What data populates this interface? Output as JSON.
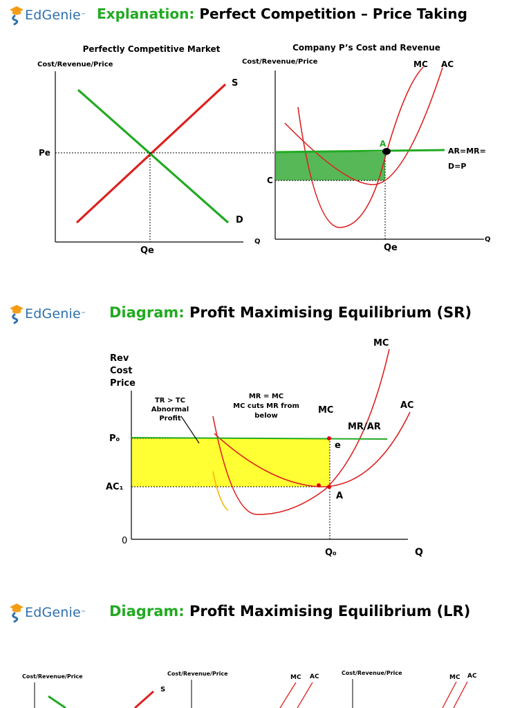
{
  "brand": {
    "name": "EdGenie",
    "tm": "™"
  },
  "colors": {
    "green": "#22aa22",
    "red": "#dd2020",
    "yellow": "#ffff33",
    "brand_blue": "#2d6fae",
    "brand_orange": "#f39c12"
  },
  "section1": {
    "title_keyword": "Explanation:",
    "title_rest": "Perfect Competition – Price Taking",
    "left": {
      "heading": "Perfectly Competitive Market",
      "ylabel": "Cost/Revenue/Price",
      "xlabel": "Q",
      "price_label": "Pe",
      "qty_label": "Qe",
      "supply_label": "S",
      "demand_label": "D"
    },
    "right": {
      "heading": "Company P’s Cost and Revenue",
      "ylabel": "Cost/Revenue/Price",
      "xlabel": "Q",
      "mc_label": "MC",
      "ac_label": "AC",
      "point_label": "A",
      "ar_line1": "AR=MR=",
      "ar_line2": "D=P",
      "cost_label": "C",
      "qty_label": "Qe"
    }
  },
  "section2": {
    "title_keyword": "Diagram:",
    "title_rest": "Profit Maximising Equilibrium (SR)",
    "ylabel": [
      "Rev",
      "Cost",
      "Price"
    ],
    "price_label": "P₀",
    "ac_label": "AC₁",
    "origin_label": "0",
    "qty_label": "Q₀",
    "xlabel": "Q",
    "mc_top_label": "MC",
    "mc_label": "MC",
    "ac_curve_label": "AC",
    "mrar_label": "MR/AR",
    "point_e": "e",
    "point_a": "A",
    "note_profit": [
      "TR > TC",
      "Abnormal",
      "Profit"
    ],
    "note_rule": [
      "MR = MC",
      "MC cuts MR from",
      "below"
    ]
  },
  "section3": {
    "title_keyword": "Diagram:",
    "title_rest": "Profit Maximising Equilibrium (LR)",
    "left": {
      "ylabel": "Cost/Revenue/Price",
      "supply_label": "S"
    },
    "middle": {
      "ylabel": "Cost/Revenue/Price",
      "mc_label": "MC",
      "ac_label": "AC"
    },
    "right": {
      "ylabel": "Cost/Revenue/Price",
      "mc_label": "MC",
      "ac_label": "AC"
    }
  }
}
